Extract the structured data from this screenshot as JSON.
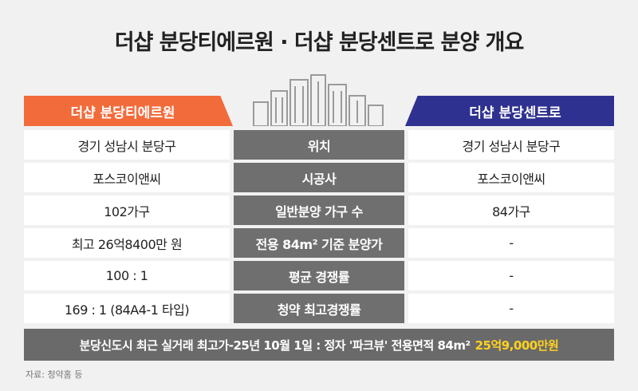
{
  "title": "더샵 분당티에르원 · 더샵 분당센트로 분양 개요",
  "left_header": "더샵 분당티에르원",
  "right_header": "더샵 분당센트로",
  "rows": [
    {
      "left": "경기 성남시 분당구",
      "label": "위치",
      "right": "경기 성남시 분당구"
    },
    {
      "left": "포스코이앤씨",
      "label": "시공사",
      "right": "포스코이앤씨"
    },
    {
      "left": "102가구",
      "label": "일반분양 가구 수",
      "right": "84가구"
    },
    {
      "left": "최고 26억8400만 원",
      "label": "전용 84m² 기준 분양가",
      "right": "-"
    },
    {
      "left": "100 : 1",
      "label": "평균 경쟁률",
      "right": "-"
    },
    {
      "left": "169 : 1 (84A4-1 타입)",
      "label": "청약 최고경쟁률",
      "right": "-"
    }
  ],
  "footnote": {
    "text": "분당신도시 최근 실거래 최고가-25년 10월 1일 : 정자 '파크뷰' 전용면적 84m²",
    "highlight": "25억9,000만원"
  },
  "source": "자료: 청약홈 등"
}
